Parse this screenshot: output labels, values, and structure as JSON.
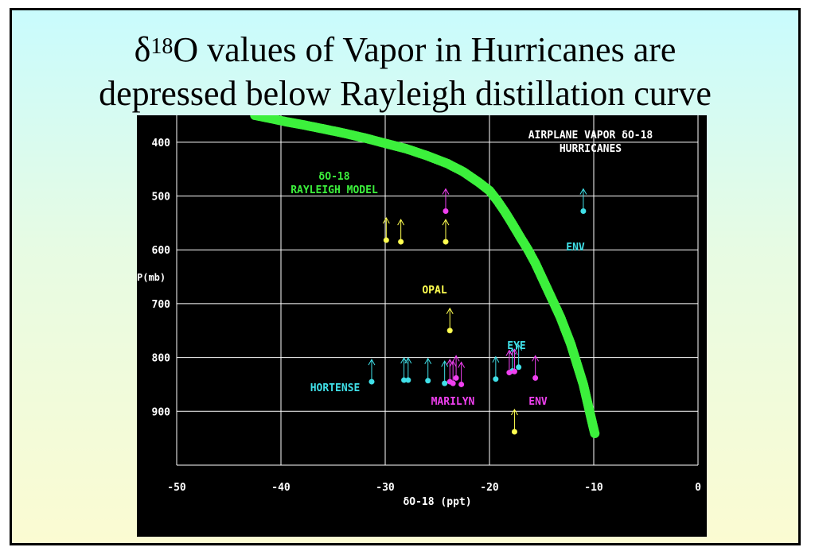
{
  "title": {
    "delta": "δ",
    "sup": "18",
    "line1_rest": "O values of Vapor in Hurricanes are",
    "line2": "depressed below Rayleigh distillation curve"
  },
  "colors": {
    "background": "#000000",
    "grid": "#ffffff",
    "rayleigh": "#3cf03c",
    "hortense": "#40e0e8",
    "marilyn": "#f040f0",
    "opal": "#ffff50",
    "env": "#40e0e8",
    "text_white": "#ffffff"
  },
  "chart_data": {
    "type": "scatter",
    "xlabel": "δO-18 (ppt)",
    "ylabel": "P(mb)",
    "xlim": [
      -50,
      0
    ],
    "ylim": [
      1000,
      350
    ],
    "x_ticks": [
      "-50",
      "-40",
      "-30",
      "-20",
      "-10",
      "0"
    ],
    "x_tick_values": [
      -50,
      -40,
      -30,
      -20,
      -10,
      0
    ],
    "y_ticks": [
      "400",
      "500",
      "600",
      "700",
      "800",
      "900"
    ],
    "y_tick_values": [
      400,
      500,
      600,
      700,
      800,
      900
    ],
    "grid": true,
    "annotations": {
      "header_line1": "AIRPLANE VAPOR δO-18",
      "header_line2": "HURRICANES",
      "model_line1": "δO-18",
      "model_line2": "RAYLEIGH MODEL",
      "opal": "OPAL",
      "eye": "EYE",
      "env_upper": "ENV",
      "env_lower": "ENV",
      "hortense": "HORTENSE",
      "marilyn": "MARILYN"
    },
    "series": [
      {
        "name": "RAYLEIGH MODEL",
        "kind": "curve",
        "points": [
          [
            -42.5,
            350
          ],
          [
            -41.2,
            355
          ],
          [
            -39.5,
            362
          ],
          [
            -37.8,
            368
          ],
          [
            -36.0,
            375
          ],
          [
            -34.0,
            383
          ],
          [
            -32.0,
            392
          ],
          [
            -30.0,
            402
          ],
          [
            -28.0,
            412
          ],
          [
            -26.0,
            425
          ],
          [
            -24.0,
            440
          ],
          [
            -22.5,
            455
          ],
          [
            -21.0,
            475
          ],
          [
            -20.0,
            490
          ],
          [
            -19.2,
            510
          ],
          [
            -18.5,
            530
          ],
          [
            -17.8,
            552
          ],
          [
            -17.0,
            578
          ],
          [
            -16.3,
            600
          ],
          [
            -15.6,
            625
          ],
          [
            -15.0,
            650
          ],
          [
            -14.4,
            675
          ],
          [
            -13.8,
            700
          ],
          [
            -13.2,
            725
          ],
          [
            -12.7,
            750
          ],
          [
            -12.2,
            775
          ],
          [
            -11.8,
            800
          ],
          [
            -11.4,
            825
          ],
          [
            -11.0,
            850
          ],
          [
            -10.7,
            875
          ],
          [
            -10.4,
            900
          ],
          [
            -10.1,
            925
          ],
          [
            -9.9,
            941
          ]
        ]
      },
      {
        "name": "HORTENSE",
        "kind": "points",
        "points": [
          [
            -31.3,
            845
          ],
          [
            -28.2,
            842
          ],
          [
            -27.8,
            842
          ],
          [
            -25.9,
            843
          ],
          [
            -24.3,
            848
          ],
          [
            -19.4,
            840
          ],
          [
            -17.8,
            825
          ],
          [
            -17.2,
            818
          ]
        ]
      },
      {
        "name": "MARILYN",
        "kind": "points",
        "points": [
          [
            -24.2,
            528
          ],
          [
            -23.8,
            845
          ],
          [
            -23.5,
            848
          ],
          [
            -23.2,
            838
          ],
          [
            -22.7,
            850
          ],
          [
            -18.1,
            828
          ],
          [
            -17.6,
            826
          ],
          [
            -15.6,
            838
          ]
        ]
      },
      {
        "name": "OPAL",
        "kind": "points",
        "points": [
          [
            -29.9,
            582
          ],
          [
            -28.5,
            585
          ],
          [
            -24.2,
            585
          ],
          [
            -23.8,
            750
          ],
          [
            -17.6,
            938
          ]
        ]
      },
      {
        "name": "ENV",
        "kind": "points",
        "points": [
          [
            -11.0,
            528
          ]
        ]
      }
    ]
  }
}
